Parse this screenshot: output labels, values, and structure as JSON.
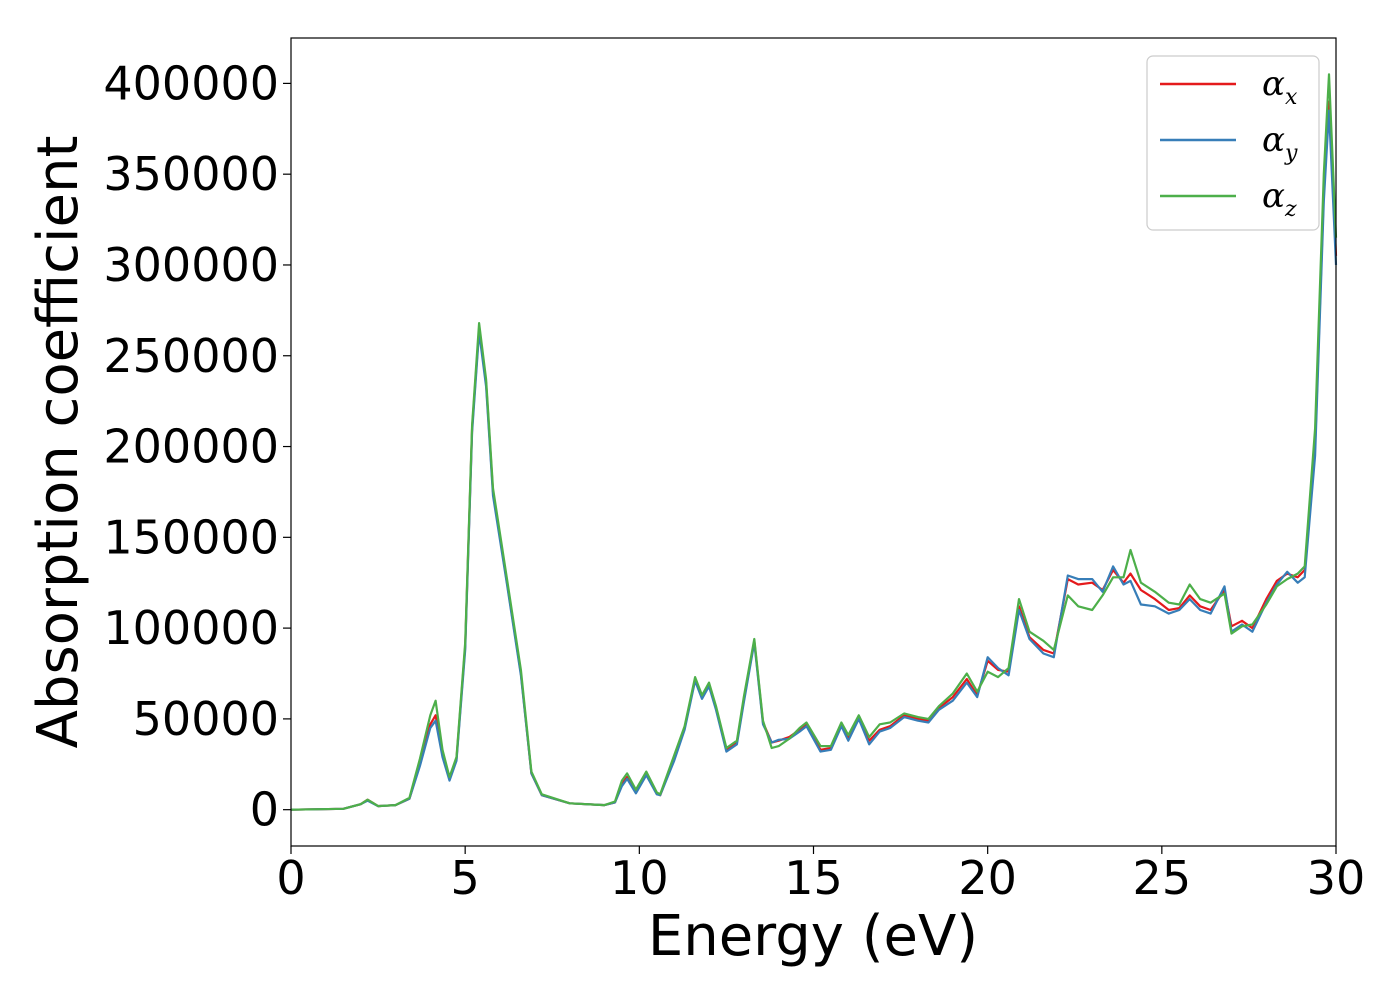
{
  "chart_data": {
    "type": "line",
    "title": "",
    "xlabel": "Energy (eV)",
    "ylabel": "Absorption coefficient",
    "xlim": [
      0,
      30
    ],
    "ylim": [
      -20000,
      425000
    ],
    "xticks": [
      0,
      5,
      10,
      15,
      20,
      25,
      30
    ],
    "yticks": [
      0,
      50000,
      100000,
      150000,
      200000,
      250000,
      300000,
      350000,
      400000
    ],
    "grid": false,
    "legend_position": "top-right",
    "series": [
      {
        "name": "αx",
        "symbol": "α",
        "subscript": "x",
        "color": "#e41a1c",
        "points": [
          [
            0,
            0
          ],
          [
            1.5,
            500
          ],
          [
            2.0,
            3000
          ],
          [
            2.2,
            5500
          ],
          [
            2.5,
            2000
          ],
          [
            3.0,
            2500
          ],
          [
            3.4,
            6000
          ],
          [
            3.7,
            25000
          ],
          [
            4.0,
            47000
          ],
          [
            4.15,
            52000
          ],
          [
            4.35,
            30000
          ],
          [
            4.55,
            17000
          ],
          [
            4.75,
            28000
          ],
          [
            5.0,
            90000
          ],
          [
            5.2,
            210000
          ],
          [
            5.4,
            265000
          ],
          [
            5.6,
            235000
          ],
          [
            5.8,
            175000
          ],
          [
            6.2,
            125000
          ],
          [
            6.6,
            75000
          ],
          [
            6.9,
            20000
          ],
          [
            7.2,
            8000
          ],
          [
            8.0,
            3500
          ],
          [
            9.0,
            2500
          ],
          [
            9.3,
            4000
          ],
          [
            9.5,
            14000
          ],
          [
            9.65,
            18000
          ],
          [
            9.9,
            10000
          ],
          [
            10.2,
            20000
          ],
          [
            10.5,
            9000
          ],
          [
            10.6,
            8000
          ],
          [
            11.0,
            28000
          ],
          [
            11.3,
            45000
          ],
          [
            11.6,
            72000
          ],
          [
            11.8,
            62000
          ],
          [
            12.0,
            69000
          ],
          [
            12.2,
            56000
          ],
          [
            12.5,
            33000
          ],
          [
            12.8,
            37000
          ],
          [
            13.0,
            60000
          ],
          [
            13.3,
            93000
          ],
          [
            13.55,
            48000
          ],
          [
            13.8,
            37000
          ],
          [
            14.0,
            38000
          ],
          [
            14.3,
            40000
          ],
          [
            14.6,
            44000
          ],
          [
            14.8,
            47000
          ],
          [
            15.2,
            33000
          ],
          [
            15.5,
            34000
          ],
          [
            15.8,
            47000
          ],
          [
            16.0,
            39000
          ],
          [
            16.3,
            51000
          ],
          [
            16.6,
            38000
          ],
          [
            16.9,
            44000
          ],
          [
            17.2,
            46000
          ],
          [
            17.6,
            52000
          ],
          [
            18.0,
            50000
          ],
          [
            18.3,
            49000
          ],
          [
            18.6,
            56000
          ],
          [
            19.0,
            62000
          ],
          [
            19.4,
            72000
          ],
          [
            19.7,
            63000
          ],
          [
            20.0,
            82000
          ],
          [
            20.3,
            77000
          ],
          [
            20.6,
            76000
          ],
          [
            20.9,
            112000
          ],
          [
            21.2,
            95000
          ],
          [
            21.6,
            88000
          ],
          [
            21.9,
            86000
          ],
          [
            22.3,
            127000
          ],
          [
            22.6,
            124000
          ],
          [
            23.0,
            125000
          ],
          [
            23.3,
            121000
          ],
          [
            23.6,
            132000
          ],
          [
            23.9,
            125000
          ],
          [
            24.1,
            130000
          ],
          [
            24.4,
            121000
          ],
          [
            24.8,
            116000
          ],
          [
            25.2,
            110000
          ],
          [
            25.5,
            111000
          ],
          [
            25.8,
            118000
          ],
          [
            26.1,
            112000
          ],
          [
            26.4,
            110000
          ],
          [
            26.8,
            121000
          ],
          [
            27.0,
            101000
          ],
          [
            27.3,
            104000
          ],
          [
            27.6,
            100000
          ],
          [
            28.0,
            116000
          ],
          [
            28.3,
            126000
          ],
          [
            28.6,
            130000
          ],
          [
            28.9,
            128000
          ],
          [
            29.1,
            132000
          ],
          [
            29.4,
            200000
          ],
          [
            29.65,
            340000
          ],
          [
            29.8,
            390000
          ],
          [
            30.0,
            305000
          ]
        ]
      },
      {
        "name": "αy",
        "symbol": "α",
        "subscript": "y",
        "color": "#377eb8",
        "points": [
          [
            0,
            0
          ],
          [
            1.5,
            500
          ],
          [
            2.0,
            3000
          ],
          [
            2.2,
            5000
          ],
          [
            2.5,
            2000
          ],
          [
            3.0,
            2500
          ],
          [
            3.4,
            6000
          ],
          [
            3.7,
            24000
          ],
          [
            4.0,
            45000
          ],
          [
            4.15,
            49000
          ],
          [
            4.35,
            29000
          ],
          [
            4.55,
            16000
          ],
          [
            4.75,
            27000
          ],
          [
            5.0,
            88000
          ],
          [
            5.2,
            208000
          ],
          [
            5.4,
            263000
          ],
          [
            5.6,
            233000
          ],
          [
            5.8,
            173000
          ],
          [
            6.2,
            124000
          ],
          [
            6.6,
            74000
          ],
          [
            6.9,
            20000
          ],
          [
            7.2,
            8000
          ],
          [
            8.0,
            3500
          ],
          [
            9.0,
            2500
          ],
          [
            9.3,
            4000
          ],
          [
            9.5,
            13000
          ],
          [
            9.65,
            17000
          ],
          [
            9.9,
            9000
          ],
          [
            10.2,
            19000
          ],
          [
            10.5,
            8500
          ],
          [
            10.6,
            8000
          ],
          [
            11.0,
            27000
          ],
          [
            11.3,
            44000
          ],
          [
            11.6,
            71000
          ],
          [
            11.8,
            61000
          ],
          [
            12.0,
            68000
          ],
          [
            12.2,
            55000
          ],
          [
            12.5,
            32000
          ],
          [
            12.8,
            36000
          ],
          [
            13.0,
            59000
          ],
          [
            13.3,
            92000
          ],
          [
            13.55,
            47000
          ],
          [
            13.8,
            37000
          ],
          [
            14.0,
            38500
          ],
          [
            14.3,
            39000
          ],
          [
            14.6,
            43000
          ],
          [
            14.8,
            46000
          ],
          [
            15.2,
            32000
          ],
          [
            15.5,
            33000
          ],
          [
            15.8,
            46000
          ],
          [
            16.0,
            38000
          ],
          [
            16.3,
            50000
          ],
          [
            16.6,
            36000
          ],
          [
            16.9,
            43000
          ],
          [
            17.2,
            45000
          ],
          [
            17.6,
            51000
          ],
          [
            18.0,
            49000
          ],
          [
            18.3,
            48000
          ],
          [
            18.6,
            55000
          ],
          [
            19.0,
            60000
          ],
          [
            19.4,
            70000
          ],
          [
            19.7,
            62000
          ],
          [
            20.0,
            84000
          ],
          [
            20.3,
            78000
          ],
          [
            20.6,
            74000
          ],
          [
            20.9,
            110000
          ],
          [
            21.2,
            94000
          ],
          [
            21.6,
            86000
          ],
          [
            21.9,
            84000
          ],
          [
            22.3,
            129000
          ],
          [
            22.6,
            127000
          ],
          [
            23.0,
            127000
          ],
          [
            23.3,
            120000
          ],
          [
            23.6,
            134000
          ],
          [
            23.9,
            124000
          ],
          [
            24.1,
            126000
          ],
          [
            24.4,
            113000
          ],
          [
            24.8,
            112000
          ],
          [
            25.2,
            108000
          ],
          [
            25.5,
            110000
          ],
          [
            25.8,
            116000
          ],
          [
            26.1,
            110000
          ],
          [
            26.4,
            108000
          ],
          [
            26.8,
            123000
          ],
          [
            27.0,
            98000
          ],
          [
            27.3,
            102000
          ],
          [
            27.6,
            98000
          ],
          [
            28.0,
            114000
          ],
          [
            28.3,
            124000
          ],
          [
            28.6,
            131000
          ],
          [
            28.9,
            125000
          ],
          [
            29.1,
            128000
          ],
          [
            29.4,
            195000
          ],
          [
            29.65,
            335000
          ],
          [
            29.8,
            385000
          ],
          [
            30.0,
            300000
          ]
        ]
      },
      {
        "name": "αz",
        "symbol": "α",
        "subscript": "z",
        "color": "#4daf4a",
        "points": [
          [
            0,
            0
          ],
          [
            1.5,
            500
          ],
          [
            2.0,
            3000
          ],
          [
            2.2,
            5500
          ],
          [
            2.5,
            2000
          ],
          [
            3.0,
            2500
          ],
          [
            3.4,
            6500
          ],
          [
            3.7,
            28000
          ],
          [
            4.0,
            52000
          ],
          [
            4.15,
            60000
          ],
          [
            4.35,
            33000
          ],
          [
            4.55,
            18000
          ],
          [
            4.75,
            29000
          ],
          [
            5.0,
            92000
          ],
          [
            5.2,
            212000
          ],
          [
            5.4,
            268000
          ],
          [
            5.6,
            237000
          ],
          [
            5.8,
            177000
          ],
          [
            6.2,
            127000
          ],
          [
            6.6,
            77000
          ],
          [
            6.9,
            21000
          ],
          [
            7.2,
            8500
          ],
          [
            8.0,
            3500
          ],
          [
            9.0,
            2500
          ],
          [
            9.3,
            4500
          ],
          [
            9.5,
            16000
          ],
          [
            9.65,
            20000
          ],
          [
            9.9,
            11000
          ],
          [
            10.2,
            21000
          ],
          [
            10.5,
            9500
          ],
          [
            10.6,
            8500
          ],
          [
            11.0,
            30000
          ],
          [
            11.3,
            46000
          ],
          [
            11.6,
            73000
          ],
          [
            11.8,
            63000
          ],
          [
            12.0,
            70000
          ],
          [
            12.2,
            57000
          ],
          [
            12.5,
            34000
          ],
          [
            12.8,
            38000
          ],
          [
            13.0,
            62000
          ],
          [
            13.3,
            94000
          ],
          [
            13.55,
            49000
          ],
          [
            13.8,
            34000
          ],
          [
            14.0,
            35000
          ],
          [
            14.3,
            39000
          ],
          [
            14.6,
            45000
          ],
          [
            14.8,
            48000
          ],
          [
            15.2,
            35000
          ],
          [
            15.5,
            35000
          ],
          [
            15.8,
            48000
          ],
          [
            16.0,
            41000
          ],
          [
            16.3,
            52000
          ],
          [
            16.6,
            40000
          ],
          [
            16.9,
            47000
          ],
          [
            17.2,
            48000
          ],
          [
            17.6,
            53000
          ],
          [
            18.0,
            51000
          ],
          [
            18.3,
            50000
          ],
          [
            18.6,
            57000
          ],
          [
            19.0,
            64000
          ],
          [
            19.4,
            75000
          ],
          [
            19.7,
            65000
          ],
          [
            20.0,
            76000
          ],
          [
            20.3,
            73000
          ],
          [
            20.6,
            78000
          ],
          [
            20.9,
            116000
          ],
          [
            21.2,
            98000
          ],
          [
            21.6,
            93000
          ],
          [
            21.9,
            88000
          ],
          [
            22.3,
            118000
          ],
          [
            22.6,
            112000
          ],
          [
            23.0,
            110000
          ],
          [
            23.3,
            118000
          ],
          [
            23.6,
            128000
          ],
          [
            23.9,
            128000
          ],
          [
            24.1,
            143000
          ],
          [
            24.4,
            125000
          ],
          [
            24.8,
            120000
          ],
          [
            25.2,
            114000
          ],
          [
            25.5,
            113000
          ],
          [
            25.8,
            124000
          ],
          [
            26.1,
            116000
          ],
          [
            26.4,
            114000
          ],
          [
            26.8,
            119000
          ],
          [
            27.0,
            97000
          ],
          [
            27.3,
            101000
          ],
          [
            27.6,
            102000
          ],
          [
            28.0,
            113000
          ],
          [
            28.3,
            123000
          ],
          [
            28.6,
            127000
          ],
          [
            28.9,
            130000
          ],
          [
            29.1,
            134000
          ],
          [
            29.4,
            210000
          ],
          [
            29.65,
            350000
          ],
          [
            29.8,
            405000
          ],
          [
            30.0,
            315000
          ]
        ]
      }
    ]
  }
}
